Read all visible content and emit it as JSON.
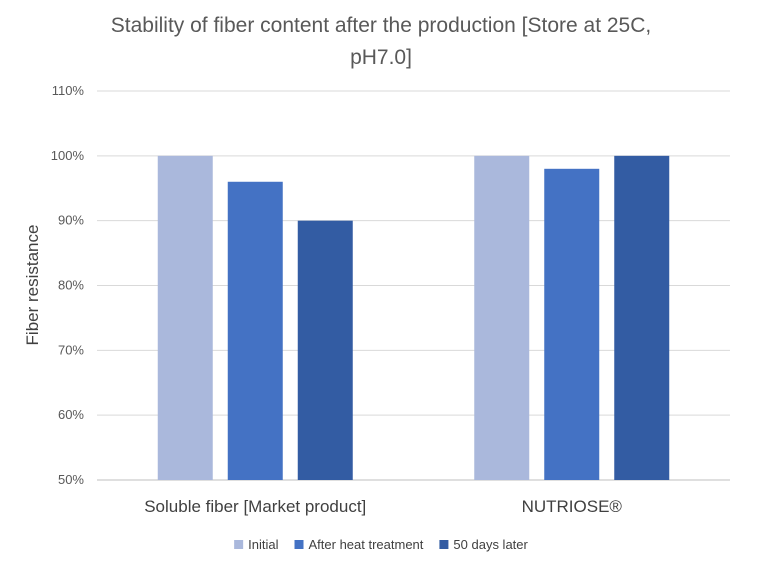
{
  "chart_data": {
    "type": "bar",
    "title": "Stability of fiber content after the production [Store at 25C, pH7.0]",
    "title_lines": [
      "Stability of fiber content after the production [Store at 25C,",
      "pH7.0]"
    ],
    "xlabel": "",
    "ylabel": "Fiber resistance",
    "ylim": [
      0.5,
      1.1
    ],
    "yticks": [
      "50%",
      "60%",
      "70%",
      "80%",
      "90%",
      "100%",
      "110%"
    ],
    "categories": [
      "Soluble fiber [Market product]",
      "NUTRIOSE®"
    ],
    "series": [
      {
        "name": "Initial",
        "color": "#aab8dc",
        "values": [
          1.0,
          1.0
        ]
      },
      {
        "name": "After heat treatment",
        "color": "#4472c4",
        "values": [
          0.96,
          0.98
        ]
      },
      {
        "name": "50 days later",
        "color": "#335ca3",
        "values": [
          0.9,
          1.0
        ]
      }
    ],
    "grid": true,
    "legend_position": "bottom"
  }
}
